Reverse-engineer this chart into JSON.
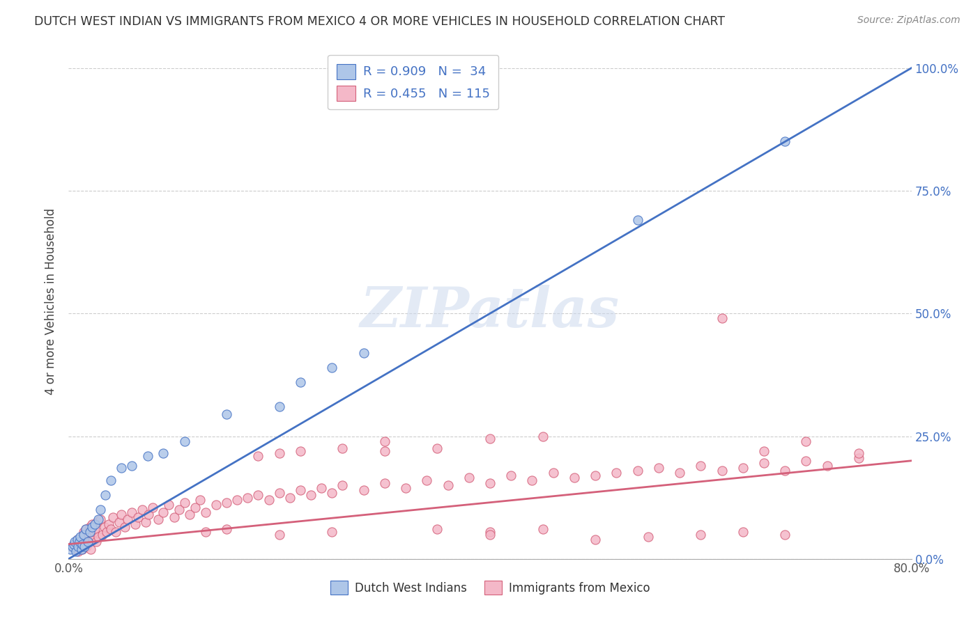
{
  "title": "DUTCH WEST INDIAN VS IMMIGRANTS FROM MEXICO 4 OR MORE VEHICLES IN HOUSEHOLD CORRELATION CHART",
  "source": "Source: ZipAtlas.com",
  "ylabel": "4 or more Vehicles in Household",
  "xlim": [
    0.0,
    0.8
  ],
  "ylim": [
    0.0,
    1.05
  ],
  "blue_color": "#aec6e8",
  "blue_line_color": "#4472c4",
  "pink_color": "#f4b8c8",
  "pink_line_color": "#d4607a",
  "legend_label_blue": "R = 0.909   N =  34",
  "legend_label_pink": "R = 0.455   N = 115",
  "legend_label_blue_bottom": "Dutch West Indians",
  "legend_label_pink_bottom": "Immigrants from Mexico",
  "watermark": "ZIPatlas",
  "blue_scatter_x": [
    0.002,
    0.004,
    0.005,
    0.006,
    0.007,
    0.008,
    0.009,
    0.01,
    0.011,
    0.012,
    0.013,
    0.014,
    0.015,
    0.016,
    0.018,
    0.02,
    0.022,
    0.025,
    0.028,
    0.03,
    0.035,
    0.04,
    0.05,
    0.06,
    0.075,
    0.09,
    0.11,
    0.15,
    0.2,
    0.22,
    0.25,
    0.28,
    0.54,
    0.68
  ],
  "blue_scatter_y": [
    0.02,
    0.025,
    0.03,
    0.035,
    0.015,
    0.04,
    0.025,
    0.035,
    0.045,
    0.02,
    0.03,
    0.05,
    0.025,
    0.06,
    0.035,
    0.055,
    0.065,
    0.07,
    0.08,
    0.1,
    0.13,
    0.16,
    0.185,
    0.19,
    0.21,
    0.215,
    0.24,
    0.295,
    0.31,
    0.36,
    0.39,
    0.42,
    0.69,
    0.85
  ],
  "pink_scatter_x": [
    0.003,
    0.005,
    0.007,
    0.008,
    0.009,
    0.01,
    0.011,
    0.012,
    0.013,
    0.014,
    0.015,
    0.016,
    0.017,
    0.018,
    0.019,
    0.02,
    0.021,
    0.022,
    0.023,
    0.024,
    0.025,
    0.026,
    0.027,
    0.028,
    0.03,
    0.032,
    0.034,
    0.036,
    0.038,
    0.04,
    0.042,
    0.045,
    0.048,
    0.05,
    0.053,
    0.056,
    0.06,
    0.063,
    0.066,
    0.07,
    0.073,
    0.076,
    0.08,
    0.085,
    0.09,
    0.095,
    0.1,
    0.105,
    0.11,
    0.115,
    0.12,
    0.125,
    0.13,
    0.14,
    0.15,
    0.16,
    0.17,
    0.18,
    0.19,
    0.2,
    0.21,
    0.22,
    0.23,
    0.24,
    0.25,
    0.26,
    0.28,
    0.3,
    0.32,
    0.34,
    0.36,
    0.38,
    0.4,
    0.42,
    0.44,
    0.46,
    0.48,
    0.5,
    0.52,
    0.54,
    0.56,
    0.58,
    0.6,
    0.62,
    0.64,
    0.66,
    0.68,
    0.7,
    0.72,
    0.75,
    0.13,
    0.15,
    0.18,
    0.2,
    0.22,
    0.26,
    0.3,
    0.35,
    0.4,
    0.45,
    0.3,
    0.4,
    0.45,
    0.5,
    0.55,
    0.6,
    0.64,
    0.66,
    0.7,
    0.75,
    0.2,
    0.25,
    0.35,
    0.4,
    0.62,
    0.68
  ],
  "pink_scatter_y": [
    0.025,
    0.03,
    0.02,
    0.04,
    0.015,
    0.035,
    0.025,
    0.045,
    0.02,
    0.055,
    0.03,
    0.06,
    0.025,
    0.05,
    0.035,
    0.065,
    0.02,
    0.07,
    0.04,
    0.055,
    0.06,
    0.035,
    0.075,
    0.045,
    0.08,
    0.05,
    0.065,
    0.055,
    0.07,
    0.06,
    0.085,
    0.055,
    0.075,
    0.09,
    0.065,
    0.08,
    0.095,
    0.07,
    0.085,
    0.1,
    0.075,
    0.09,
    0.105,
    0.08,
    0.095,
    0.11,
    0.085,
    0.1,
    0.115,
    0.09,
    0.105,
    0.12,
    0.095,
    0.11,
    0.115,
    0.12,
    0.125,
    0.13,
    0.12,
    0.135,
    0.125,
    0.14,
    0.13,
    0.145,
    0.135,
    0.15,
    0.14,
    0.155,
    0.145,
    0.16,
    0.15,
    0.165,
    0.155,
    0.17,
    0.16,
    0.175,
    0.165,
    0.17,
    0.175,
    0.18,
    0.185,
    0.175,
    0.19,
    0.18,
    0.185,
    0.195,
    0.18,
    0.2,
    0.19,
    0.205,
    0.055,
    0.06,
    0.21,
    0.215,
    0.22,
    0.225,
    0.22,
    0.225,
    0.055,
    0.06,
    0.24,
    0.245,
    0.25,
    0.04,
    0.045,
    0.05,
    0.055,
    0.22,
    0.24,
    0.215,
    0.05,
    0.055,
    0.06,
    0.05,
    0.49,
    0.05
  ]
}
